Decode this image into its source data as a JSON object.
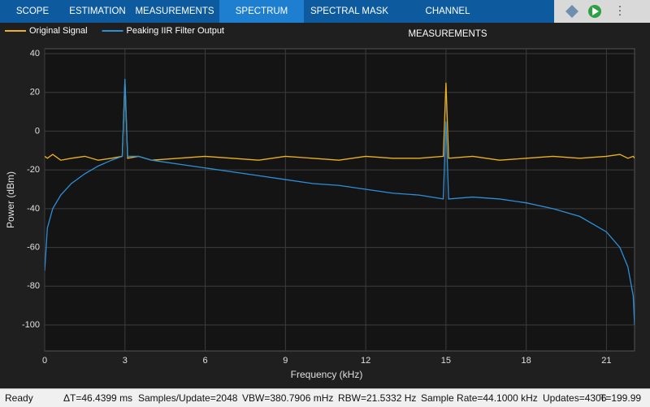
{
  "toolbar": {
    "tabs": [
      "SCOPE",
      "ESTIMATION",
      "MEASUREMENTS",
      "SPECTRUM",
      "SPECTRAL MASK",
      "CHANNEL MEASUREMENTS"
    ]
  },
  "chart_data": {
    "type": "line",
    "xlabel": "Frequency (kHz)",
    "ylabel": "Power (dBm)",
    "x": [
      0,
      0.1,
      0.3,
      0.6,
      1,
      1.5,
      2,
      2.5,
      2.9,
      3,
      3.1,
      3.5,
      4,
      5,
      6,
      7,
      8,
      9,
      10,
      11,
      12,
      13,
      14,
      14.9,
      15,
      15.1,
      16,
      17,
      18,
      19,
      20,
      21,
      21.5,
      21.8,
      22,
      22.05
    ],
    "series": [
      {
        "name": "Original Signal",
        "color": "#edb120",
        "values": [
          -13,
          -14,
          -12,
          -15,
          -14,
          -13,
          -15,
          -14,
          -13,
          26,
          -14,
          -13,
          -15,
          -14,
          -13,
          -14,
          -15,
          -13,
          -14,
          -15,
          -13,
          -14,
          -14,
          -13,
          25,
          -14,
          -13,
          -15,
          -14,
          -13,
          -14,
          -13,
          -12,
          -14,
          -13,
          -14
        ]
      },
      {
        "name": "Peaking IIR Filter Output",
        "color": "#2c8fd8",
        "values": [
          -72,
          -50,
          -40,
          -33,
          -27,
          -22,
          -18,
          -15,
          -13,
          27,
          -13,
          -13,
          -15,
          -17,
          -19,
          -21,
          -23,
          -25,
          -27,
          -28,
          -30,
          -32,
          -33,
          -35,
          5,
          -35,
          -34,
          -35,
          -37,
          -40,
          -44,
          -52,
          -60,
          -70,
          -85,
          -100
        ]
      }
    ],
    "xlim": [
      0,
      22.05
    ],
    "ylim": [
      -113.4,
      42.5
    ],
    "xticks": [
      0,
      3,
      6,
      9,
      12,
      15,
      18,
      21
    ],
    "yticks": [
      -100,
      -80,
      -60,
      -40,
      -20,
      0,
      20,
      40
    ],
    "grid": true
  },
  "status_bar": [
    "Ready",
    "ΔT=46.4399 ms",
    "Samples/Update=2048",
    "VBW=380.7906 mHz",
    "RBW=21.5332 Hz",
    "Sample Rate=44.1000 kHz",
    "Updates=4306",
    "T=199.99"
  ]
}
